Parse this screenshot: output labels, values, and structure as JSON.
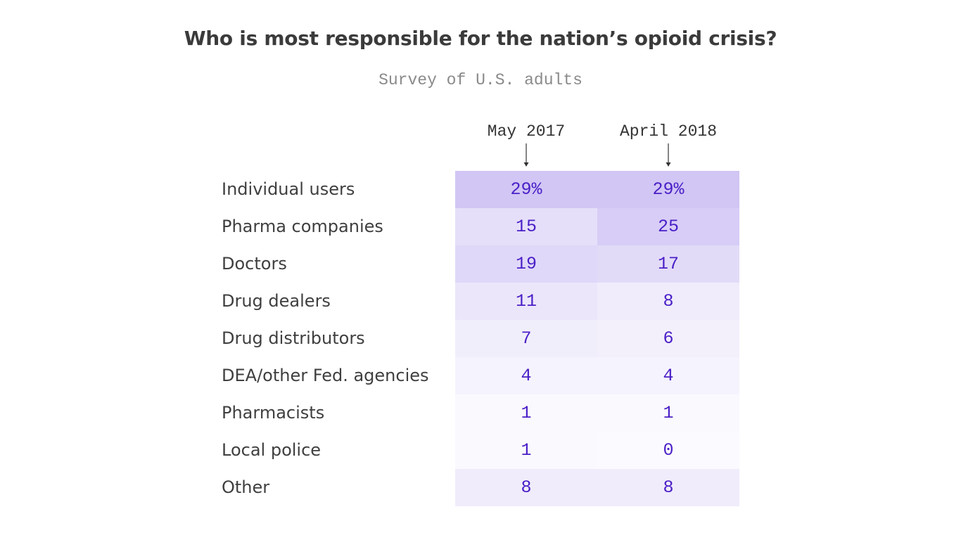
{
  "chart_data": {
    "type": "table",
    "title": "Who is most responsible for the nation’s opioid crisis?",
    "subtitle": "Survey of U.S. adults",
    "columns": [
      "May 2017",
      "April 2018"
    ],
    "rows": [
      {
        "label": "Individual users",
        "values": [
          "29%",
          "29%"
        ],
        "numeric": [
          29,
          29
        ]
      },
      {
        "label": "Pharma companies",
        "values": [
          "15",
          "25"
        ],
        "numeric": [
          15,
          25
        ]
      },
      {
        "label": "Doctors",
        "values": [
          "19",
          "17"
        ],
        "numeric": [
          19,
          17
        ]
      },
      {
        "label": "Drug dealers",
        "values": [
          "11",
          "8"
        ],
        "numeric": [
          11,
          8
        ]
      },
      {
        "label": "Drug distributors",
        "values": [
          "7",
          "6"
        ],
        "numeric": [
          7,
          6
        ]
      },
      {
        "label": "DEA/other Fed. agencies",
        "values": [
          "4",
          "4"
        ],
        "numeric": [
          4,
          4
        ]
      },
      {
        "label": "Pharmacists",
        "values": [
          "1",
          "1"
        ],
        "numeric": [
          1,
          1
        ]
      },
      {
        "label": "Local police",
        "values": [
          "1",
          "0"
        ],
        "numeric": [
          1,
          0
        ]
      },
      {
        "label": "Other",
        "values": [
          "8",
          "8"
        ],
        "numeric": [
          8,
          8
        ]
      }
    ],
    "colors": {
      "heat_base": "#7c5ce0",
      "value_text": "#4a1fc7",
      "label_text": "#3f3f3f"
    }
  }
}
